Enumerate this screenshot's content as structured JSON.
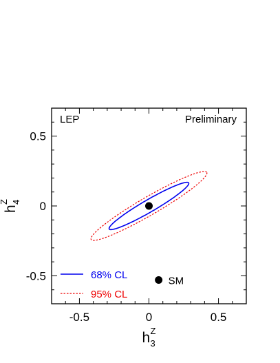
{
  "chart_data": {
    "type": "scatter",
    "experiment_label": "LEP",
    "status_label": "Preliminary",
    "xlabel": {
      "base": "h",
      "sup": "Z",
      "sub": "3"
    },
    "ylabel": {
      "base": "h",
      "sup": "Z",
      "sub": "4"
    },
    "xlim": [
      -0.7,
      0.7
    ],
    "ylim": [
      -0.7,
      0.7
    ],
    "x_ticks": [
      {
        "value": -0.5,
        "label": "-0.5"
      },
      {
        "value": 0,
        "label": "0"
      },
      {
        "value": 0.5,
        "label": "0.5"
      }
    ],
    "y_ticks": [
      {
        "value": 0.5,
        "label": "0.5"
      },
      {
        "value": 0,
        "label": "0"
      },
      {
        "value": -0.5,
        "label": "-0.5"
      }
    ],
    "fit_point": {
      "x": 0.0,
      "y": 0.0
    },
    "sm_point": {
      "x": 0.07,
      "y": -0.53,
      "label": "SM"
    },
    "contours": [
      {
        "name": "68% CL",
        "color": "#0000ee",
        "style": "solid",
        "center": [
          0.0,
          0.0
        ],
        "semi_major": 0.33,
        "semi_minor": 0.044,
        "angle_deg": 30
      },
      {
        "name": "95% CL",
        "color": "#ee0000",
        "style": "dotted",
        "center": [
          0.0,
          0.0
        ],
        "semi_major": 0.48,
        "semi_minor": 0.065,
        "angle_deg": 30
      }
    ],
    "legend_position": "bottom-left",
    "grid": false
  }
}
